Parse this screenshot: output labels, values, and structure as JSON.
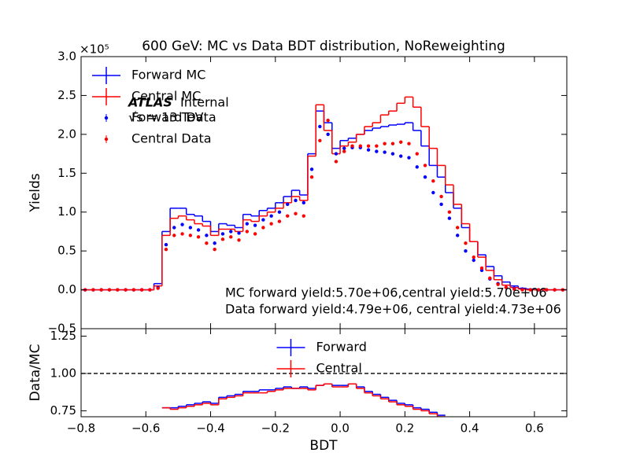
{
  "chart_data": [
    {
      "type": "histogram",
      "title": "600 GeV: MC vs Data BDT distribution, NoReweighting",
      "y_label": "Yields",
      "y_offset_label": "×10⁵",
      "atlas_label": "ATLAS",
      "atlas_status": "Internal",
      "energy_label": "√s = 13 TeV",
      "annotations": [
        "MC forward yield:5.70e+06,central yield:5.70e+06",
        "Data forward yield:4.79e+06, central yield:4.73e+06"
      ],
      "legend": "upper left",
      "xlim": [
        -0.8,
        0.7
      ],
      "xticks": [
        -0.8,
        -0.6,
        -0.4,
        -0.2,
        0,
        0.2,
        0.4,
        0.6
      ],
      "ylim": [
        -0.5,
        3.0
      ],
      "yticks": [
        {
          "value": -0.5,
          "label": "−0.5"
        },
        {
          "value": 0,
          "label": "0.0"
        },
        0.5,
        {
          "value": 1,
          "label": "1.0"
        },
        1.5,
        {
          "value": 2,
          "label": "2.0"
        },
        2.5,
        {
          "value": 3,
          "label": "3.0"
        }
      ],
      "bins": [
        -0.8,
        -0.775,
        -0.75,
        -0.725,
        -0.7,
        -0.675,
        -0.65,
        -0.625,
        -0.6,
        -0.575,
        -0.55,
        -0.525,
        -0.5,
        -0.475,
        -0.45,
        -0.425,
        -0.4,
        -0.375,
        -0.35,
        -0.325,
        -0.3,
        -0.275,
        -0.25,
        -0.225,
        -0.2,
        -0.175,
        -0.15,
        -0.125,
        -0.1,
        -0.075,
        -0.05,
        -0.025,
        0,
        0.025,
        0.05,
        0.075,
        0.1,
        0.125,
        0.15,
        0.175,
        0.2,
        0.225,
        0.25,
        0.275,
        0.3,
        0.325,
        0.35,
        0.375,
        0.4,
        0.425,
        0.45,
        0.475,
        0.5,
        0.525,
        0.55,
        0.575,
        0.6,
        0.625,
        0.65,
        0.675,
        0.7
      ],
      "series": [
        {
          "name": "Forward MC",
          "color": "#0000ff",
          "style": "step",
          "values": [
            0,
            0,
            0,
            0,
            0,
            0,
            0,
            0,
            0,
            0.08,
            0.75,
            1.05,
            1.05,
            0.97,
            0.95,
            0.88,
            0.75,
            0.85,
            0.83,
            0.8,
            0.97,
            0.95,
            1.02,
            1.05,
            1.12,
            1.2,
            1.28,
            1.22,
            1.75,
            2.3,
            2.15,
            1.82,
            1.92,
            1.95,
            2.0,
            2.05,
            2.08,
            2.1,
            2.12,
            2.13,
            2.15,
            2.05,
            1.85,
            1.6,
            1.45,
            1.25,
            1.05,
            0.8,
            0.62,
            0.45,
            0.3,
            0.18,
            0.1,
            0.05,
            0.02,
            0.01,
            0,
            0,
            0,
            0
          ]
        },
        {
          "name": "Central MC",
          "color": "#ff0000",
          "style": "step",
          "values": [
            0,
            0,
            0,
            0,
            0,
            0,
            0,
            0,
            0,
            0.05,
            0.7,
            0.92,
            0.95,
            0.9,
            0.85,
            0.82,
            0.7,
            0.78,
            0.78,
            0.75,
            0.9,
            0.88,
            0.95,
            1.0,
            1.05,
            1.12,
            1.2,
            1.15,
            1.72,
            2.38,
            2.05,
            1.75,
            1.85,
            1.9,
            2.0,
            2.1,
            2.15,
            2.25,
            2.3,
            2.4,
            2.48,
            2.35,
            2.1,
            1.82,
            1.6,
            1.35,
            1.1,
            0.85,
            0.62,
            0.42,
            0.25,
            0.13,
            0.06,
            0.03,
            0.01,
            0,
            0,
            0,
            0,
            0
          ]
        },
        {
          "name": "Forward Data",
          "color": "#0000ff",
          "style": "points",
          "values": [
            0,
            0,
            0,
            0,
            0,
            0,
            0,
            0,
            0,
            0.03,
            0.58,
            0.8,
            0.84,
            0.8,
            0.77,
            0.7,
            0.6,
            0.72,
            0.75,
            0.73,
            0.85,
            0.83,
            0.9,
            0.95,
            1.0,
            1.1,
            1.15,
            1.12,
            1.55,
            2.1,
            2.0,
            1.75,
            1.82,
            1.83,
            1.83,
            1.8,
            1.78,
            1.77,
            1.75,
            1.72,
            1.7,
            1.58,
            1.45,
            1.25,
            1.1,
            0.92,
            0.7,
            0.5,
            0.38,
            0.25,
            0.14,
            0.08,
            0.03,
            0.02,
            0.01,
            0,
            0,
            0,
            0,
            0
          ]
        },
        {
          "name": "Central Data",
          "color": "#ff0000",
          "style": "points",
          "values": [
            0,
            0,
            0,
            0,
            0,
            0,
            0,
            0,
            0,
            0.02,
            0.52,
            0.7,
            0.72,
            0.7,
            0.68,
            0.6,
            0.52,
            0.65,
            0.68,
            0.64,
            0.75,
            0.72,
            0.8,
            0.85,
            0.88,
            0.95,
            0.98,
            0.95,
            1.45,
            1.92,
            2.18,
            1.65,
            1.78,
            1.85,
            1.85,
            1.85,
            1.85,
            1.88,
            1.88,
            1.9,
            1.88,
            1.75,
            1.6,
            1.4,
            1.2,
            1.0,
            0.8,
            0.6,
            0.42,
            0.28,
            0.15,
            0.07,
            0.03,
            0.01,
            0,
            0,
            0,
            0,
            0,
            0
          ]
        }
      ]
    },
    {
      "type": "histogram",
      "x_label": "BDT",
      "y_label": "Data/MC",
      "legend": "upper center",
      "hline": 1,
      "xlim": [
        -0.8,
        0.7
      ],
      "xticks": [
        {
          "value": -0.8,
          "label": "−0.8"
        },
        {
          "value": -0.6,
          "label": "−0.6"
        },
        {
          "value": -0.4,
          "label": "−0.4"
        },
        {
          "value": -0.2,
          "label": "−0.2"
        },
        {
          "value": 0,
          "label": "0.0"
        },
        0.2,
        0.4,
        0.6
      ],
      "ylim": [
        0.71,
        1.3
      ],
      "yticks": [
        {
          "value": 0.75,
          "label": "0.75"
        },
        {
          "value": 1,
          "label": "1.00"
        },
        {
          "value": 1.25,
          "label": "1.25"
        }
      ],
      "bins": [
        -0.8,
        -0.775,
        -0.75,
        -0.725,
        -0.7,
        -0.675,
        -0.65,
        -0.625,
        -0.6,
        -0.575,
        -0.55,
        -0.525,
        -0.5,
        -0.475,
        -0.45,
        -0.425,
        -0.4,
        -0.375,
        -0.35,
        -0.325,
        -0.3,
        -0.275,
        -0.25,
        -0.225,
        -0.2,
        -0.175,
        -0.15,
        -0.125,
        -0.1,
        -0.075,
        -0.05,
        -0.025,
        0,
        0.025,
        0.05,
        0.075,
        0.1,
        0.125,
        0.15,
        0.175,
        0.2,
        0.225,
        0.25,
        0.275,
        0.3,
        0.325,
        0.35,
        0.375,
        0.4,
        0.425,
        0.45,
        0.475,
        0.5,
        0.525,
        0.55,
        0.575,
        0.6,
        0.625,
        0.65,
        0.675,
        0.7
      ],
      "series": [
        {
          "name": "Forward",
          "color": "#0000ff",
          "style": "step",
          "values": [
            null,
            null,
            null,
            null,
            null,
            null,
            null,
            null,
            null,
            null,
            0.77,
            0.77,
            0.78,
            0.79,
            0.8,
            0.81,
            0.8,
            0.84,
            0.85,
            0.86,
            0.88,
            0.88,
            0.89,
            0.89,
            0.9,
            0.91,
            0.9,
            0.91,
            0.9,
            0.92,
            0.93,
            0.92,
            0.92,
            0.93,
            0.91,
            0.88,
            0.86,
            0.84,
            0.82,
            0.8,
            0.79,
            0.77,
            0.76,
            0.74,
            0.72,
            null,
            null,
            null,
            null,
            null,
            null,
            null,
            null,
            null,
            null,
            null,
            null,
            null,
            null,
            null
          ]
        },
        {
          "name": "Central",
          "color": "#ff0000",
          "style": "step",
          "values": [
            null,
            null,
            null,
            null,
            null,
            null,
            null,
            null,
            null,
            null,
            0.77,
            0.76,
            0.77,
            0.78,
            0.79,
            0.8,
            0.79,
            0.83,
            0.84,
            0.85,
            0.87,
            0.87,
            0.87,
            0.88,
            0.89,
            0.9,
            0.9,
            0.9,
            0.89,
            0.92,
            0.93,
            0.91,
            0.91,
            0.93,
            0.9,
            0.87,
            0.85,
            0.83,
            0.81,
            0.79,
            0.78,
            0.76,
            0.75,
            0.73,
            0.71,
            null,
            null,
            null,
            null,
            null,
            null,
            null,
            null,
            null,
            null,
            null,
            null,
            null,
            null,
            null
          ]
        }
      ]
    }
  ]
}
